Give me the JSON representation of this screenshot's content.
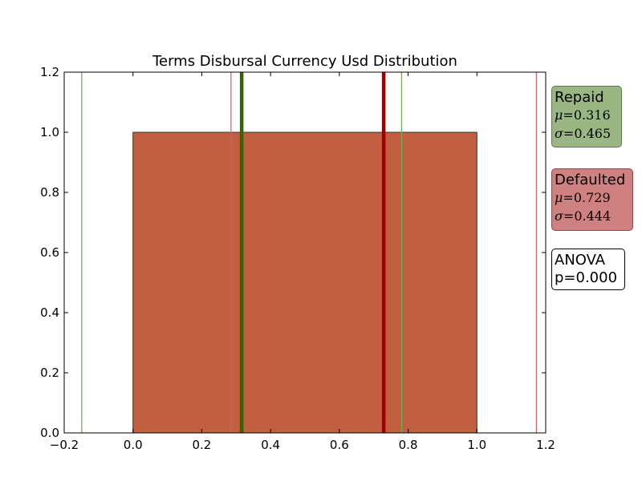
{
  "chart_data": {
    "type": "bar",
    "title": "Terms Disbursal Currency Usd Distribution",
    "xlabel": "",
    "ylabel": "",
    "xlim": [
      -0.2,
      1.2
    ],
    "ylim": [
      0.0,
      1.2
    ],
    "x_ticks": [
      "−0.2",
      "0.0",
      "0.2",
      "0.4",
      "0.6",
      "0.8",
      "1.0",
      "1.2"
    ],
    "x_tick_values": [
      -0.2,
      0.0,
      0.2,
      0.4,
      0.6,
      0.8,
      1.0,
      1.2
    ],
    "y_ticks": [
      "0.0",
      "0.2",
      "0.4",
      "0.6",
      "0.8",
      "1.0",
      "1.2"
    ],
    "y_tick_values": [
      0.0,
      0.2,
      0.4,
      0.6,
      0.8,
      1.0,
      1.2
    ],
    "grid": false,
    "bars": [
      {
        "x_start": 0.0,
        "x_end": 1.0,
        "value": 1.0,
        "color": "#c06040"
      }
    ],
    "series": [
      {
        "name": "Repaid",
        "mean": 0.316,
        "std": 0.465,
        "color": "#336600",
        "band_color": "#77aa55"
      },
      {
        "name": "Defaulted",
        "mean": 0.729,
        "std": 0.444,
        "color": "#990000",
        "band_color": "#cc6666"
      }
    ],
    "annotations": {
      "repaid": {
        "title": "Repaid",
        "mu_label": "μ",
        "mu_value": "=0.316",
        "sigma_label": "σ",
        "sigma_value": "=0.465",
        "color": "#9ab683"
      },
      "defaulted": {
        "title": "Defaulted",
        "mu_label": "μ",
        "mu_value": "=0.729",
        "sigma_label": "σ",
        "sigma_value": "=0.444",
        "color": "#cf8080"
      },
      "anova": {
        "line1": "ANOVA",
        "line2": "p=0.000"
      }
    }
  }
}
